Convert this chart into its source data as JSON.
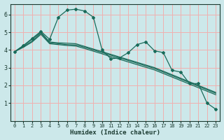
{
  "xlabel": "Humidex (Indice chaleur)",
  "bg_color": "#cce8ea",
  "grid_color": "#f0b0b0",
  "line_color": "#1a6b5a",
  "xlim": [
    -0.5,
    23.5
  ],
  "ylim": [
    0,
    6.6
  ],
  "xticks": [
    0,
    1,
    2,
    3,
    4,
    5,
    6,
    7,
    8,
    9,
    10,
    11,
    12,
    13,
    14,
    15,
    16,
    17,
    18,
    19,
    20,
    21,
    22,
    23
  ],
  "yticks": [
    1,
    2,
    3,
    4,
    5,
    6
  ],
  "line_straight1": [
    3.9,
    4.25,
    4.6,
    5.0,
    4.45,
    4.4,
    4.38,
    4.35,
    4.2,
    4.05,
    3.9,
    3.75,
    3.6,
    3.45,
    3.3,
    3.15,
    3.0,
    2.8,
    2.6,
    2.4,
    2.2,
    2.0,
    1.8,
    1.6
  ],
  "line_straight2": [
    3.9,
    4.2,
    4.5,
    4.95,
    4.4,
    4.35,
    4.3,
    4.28,
    4.15,
    4.0,
    3.85,
    3.7,
    3.55,
    3.4,
    3.25,
    3.1,
    2.95,
    2.75,
    2.55,
    2.35,
    2.15,
    1.95,
    1.75,
    1.55
  ],
  "line_straight3": [
    3.9,
    4.15,
    4.45,
    4.88,
    4.35,
    4.3,
    4.25,
    4.22,
    4.08,
    3.93,
    3.78,
    3.62,
    3.47,
    3.32,
    3.17,
    3.02,
    2.87,
    2.67,
    2.47,
    2.27,
    2.07,
    1.87,
    1.67,
    1.47
  ],
  "line_jagged_x": [
    0,
    1,
    2,
    3,
    4,
    5,
    6,
    7,
    8,
    9,
    10,
    11,
    12,
    13,
    14,
    15,
    16,
    17,
    18,
    19,
    20,
    21,
    22,
    23
  ],
  "line_jagged_y": [
    3.9,
    4.25,
    4.65,
    5.05,
    4.6,
    5.85,
    6.25,
    6.3,
    6.2,
    5.85,
    4.0,
    3.5,
    3.55,
    3.85,
    4.3,
    4.45,
    3.95,
    3.85,
    2.85,
    2.75,
    2.1,
    2.1,
    1.0,
    0.65
  ]
}
